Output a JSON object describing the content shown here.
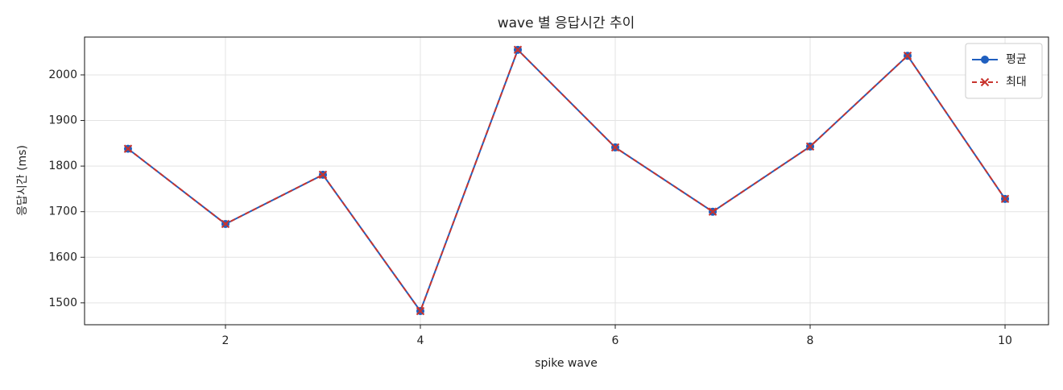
{
  "chart_data": {
    "type": "line",
    "title": "wave 별 응답시간 추이",
    "xlabel": "spike wave",
    "ylabel": "응답시간 (ms)",
    "x": [
      1,
      2,
      3,
      4,
      5,
      6,
      7,
      8,
      9,
      10
    ],
    "series": [
      {
        "name": "평균",
        "color": "#1f5fbf",
        "marker": "o",
        "linestyle": "solid",
        "values": [
          1838,
          1673,
          1781,
          1482,
          2055,
          1841,
          1700,
          1843,
          2042,
          1728
        ]
      },
      {
        "name": "최대",
        "color": "#c8342e",
        "marker": "x",
        "linestyle": "dashed",
        "values": [
          1838,
          1673,
          1781,
          1482,
          2055,
          1841,
          1700,
          1843,
          2042,
          1728
        ]
      }
    ],
    "xlim": [
      0.554,
      10.446
    ],
    "ylim": [
      1452,
      2083
    ],
    "xticks": [
      2,
      4,
      6,
      8,
      10
    ],
    "yticks": [
      1500,
      1600,
      1700,
      1800,
      1900,
      2000
    ],
    "grid": true,
    "legend": "upper right"
  }
}
